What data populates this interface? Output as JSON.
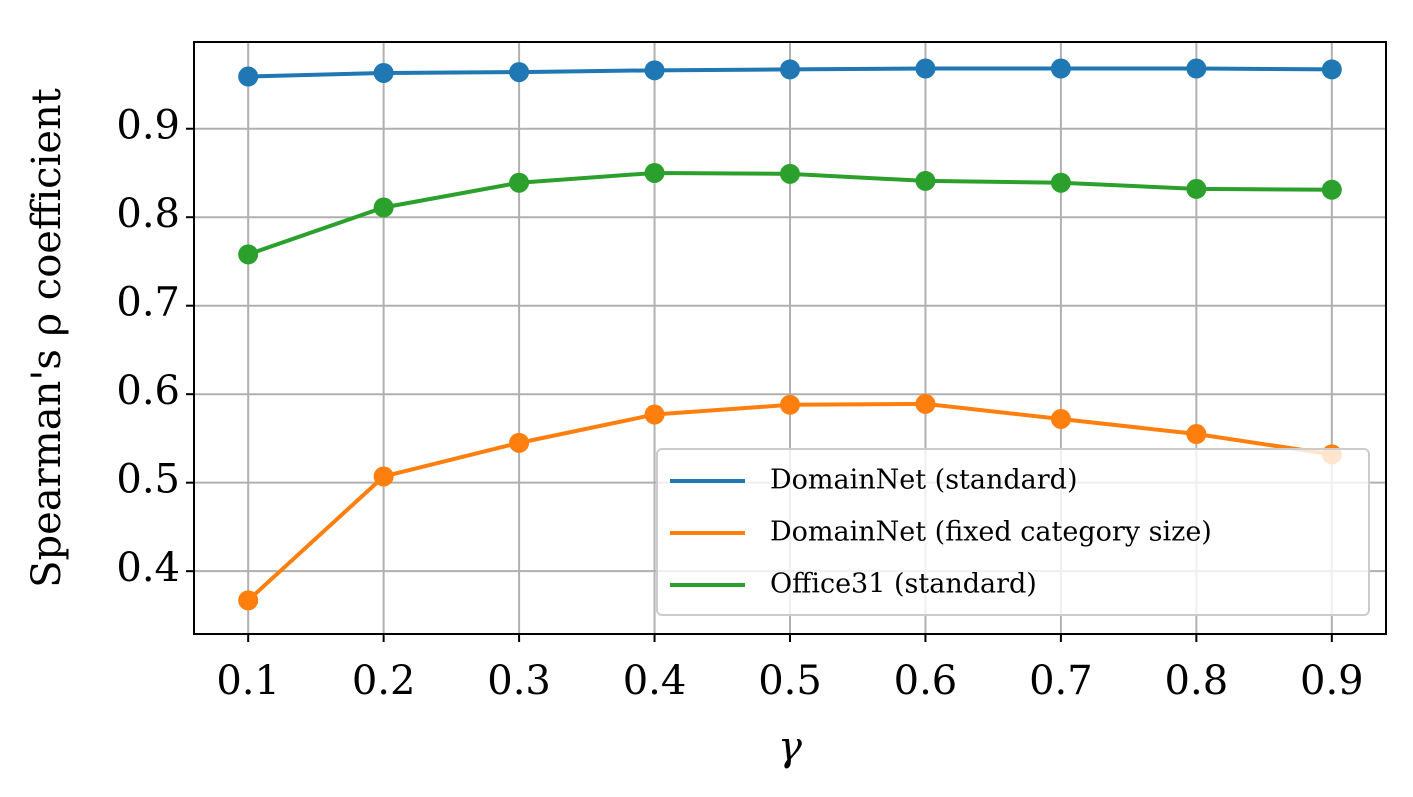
{
  "chart_data": {
    "type": "line",
    "xlabel": "γ",
    "ylabel": "Spearman's ρ coefficient",
    "x": [
      0.1,
      0.2,
      0.3,
      0.4,
      0.5,
      0.6,
      0.7,
      0.8,
      0.9
    ],
    "series": [
      {
        "name": "DomainNet (standard)",
        "color": "#1f77b4",
        "values": [
          0.959,
          0.963,
          0.964,
          0.966,
          0.967,
          0.968,
          0.968,
          0.968,
          0.967
        ]
      },
      {
        "name": "DomainNet (fixed category size)",
        "color": "#ff7f0e",
        "values": [
          0.367,
          0.507,
          0.545,
          0.577,
          0.588,
          0.589,
          0.572,
          0.555,
          0.532
        ]
      },
      {
        "name": "Office31 (standard)",
        "color": "#2ca02c",
        "values": [
          0.758,
          0.811,
          0.839,
          0.85,
          0.849,
          0.841,
          0.839,
          0.832,
          0.831
        ]
      }
    ],
    "xlim": [
      0.06,
      0.94
    ],
    "ylim": [
      0.329,
      0.998
    ],
    "xticks": [
      0.1,
      0.2,
      0.3,
      0.4,
      0.5,
      0.6,
      0.7,
      0.8,
      0.9
    ],
    "yticks": [
      0.4,
      0.5,
      0.6,
      0.7,
      0.8,
      0.9
    ],
    "grid": true,
    "legend": "lower right",
    "markers": true
  }
}
